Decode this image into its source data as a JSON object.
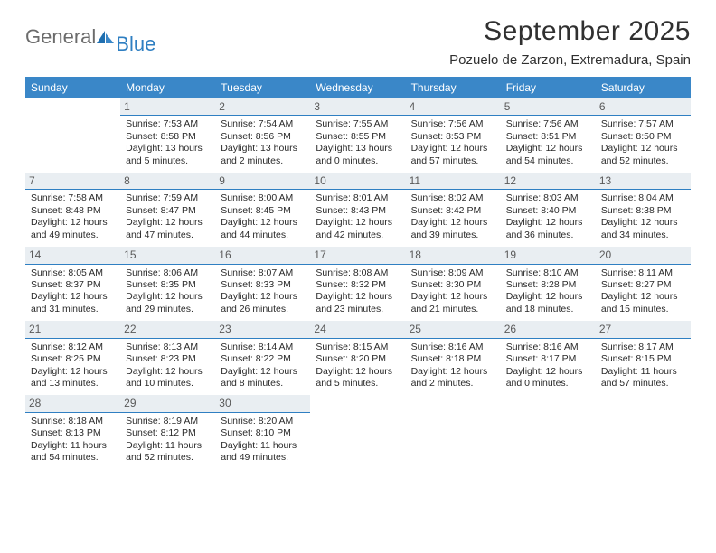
{
  "brand": {
    "prefix": "General",
    "suffix": "Blue"
  },
  "title": "September 2025",
  "location": "Pozuelo de Zarzon, Extremadura, Spain",
  "colors": {
    "header_bg": "#3a87c8",
    "header_text": "#ffffff",
    "daynum_bg": "#e9eef2",
    "daynum_border": "#2f7fc2",
    "body_text": "#2a2a2a",
    "title_text": "#303030",
    "logo_gray": "#6b6b6b",
    "logo_blue": "#2f7fc2",
    "page_bg": "#ffffff"
  },
  "weekdays": [
    "Sunday",
    "Monday",
    "Tuesday",
    "Wednesday",
    "Thursday",
    "Friday",
    "Saturday"
  ],
  "start_offset": 1,
  "days": [
    {
      "n": 1,
      "sunrise": "7:53 AM",
      "sunset": "8:58 PM",
      "daylight": "13 hours and 5 minutes."
    },
    {
      "n": 2,
      "sunrise": "7:54 AM",
      "sunset": "8:56 PM",
      "daylight": "13 hours and 2 minutes."
    },
    {
      "n": 3,
      "sunrise": "7:55 AM",
      "sunset": "8:55 PM",
      "daylight": "13 hours and 0 minutes."
    },
    {
      "n": 4,
      "sunrise": "7:56 AM",
      "sunset": "8:53 PM",
      "daylight": "12 hours and 57 minutes."
    },
    {
      "n": 5,
      "sunrise": "7:56 AM",
      "sunset": "8:51 PM",
      "daylight": "12 hours and 54 minutes."
    },
    {
      "n": 6,
      "sunrise": "7:57 AM",
      "sunset": "8:50 PM",
      "daylight": "12 hours and 52 minutes."
    },
    {
      "n": 7,
      "sunrise": "7:58 AM",
      "sunset": "8:48 PM",
      "daylight": "12 hours and 49 minutes."
    },
    {
      "n": 8,
      "sunrise": "7:59 AM",
      "sunset": "8:47 PM",
      "daylight": "12 hours and 47 minutes."
    },
    {
      "n": 9,
      "sunrise": "8:00 AM",
      "sunset": "8:45 PM",
      "daylight": "12 hours and 44 minutes."
    },
    {
      "n": 10,
      "sunrise": "8:01 AM",
      "sunset": "8:43 PM",
      "daylight": "12 hours and 42 minutes."
    },
    {
      "n": 11,
      "sunrise": "8:02 AM",
      "sunset": "8:42 PM",
      "daylight": "12 hours and 39 minutes."
    },
    {
      "n": 12,
      "sunrise": "8:03 AM",
      "sunset": "8:40 PM",
      "daylight": "12 hours and 36 minutes."
    },
    {
      "n": 13,
      "sunrise": "8:04 AM",
      "sunset": "8:38 PM",
      "daylight": "12 hours and 34 minutes."
    },
    {
      "n": 14,
      "sunrise": "8:05 AM",
      "sunset": "8:37 PM",
      "daylight": "12 hours and 31 minutes."
    },
    {
      "n": 15,
      "sunrise": "8:06 AM",
      "sunset": "8:35 PM",
      "daylight": "12 hours and 29 minutes."
    },
    {
      "n": 16,
      "sunrise": "8:07 AM",
      "sunset": "8:33 PM",
      "daylight": "12 hours and 26 minutes."
    },
    {
      "n": 17,
      "sunrise": "8:08 AM",
      "sunset": "8:32 PM",
      "daylight": "12 hours and 23 minutes."
    },
    {
      "n": 18,
      "sunrise": "8:09 AM",
      "sunset": "8:30 PM",
      "daylight": "12 hours and 21 minutes."
    },
    {
      "n": 19,
      "sunrise": "8:10 AM",
      "sunset": "8:28 PM",
      "daylight": "12 hours and 18 minutes."
    },
    {
      "n": 20,
      "sunrise": "8:11 AM",
      "sunset": "8:27 PM",
      "daylight": "12 hours and 15 minutes."
    },
    {
      "n": 21,
      "sunrise": "8:12 AM",
      "sunset": "8:25 PM",
      "daylight": "12 hours and 13 minutes."
    },
    {
      "n": 22,
      "sunrise": "8:13 AM",
      "sunset": "8:23 PM",
      "daylight": "12 hours and 10 minutes."
    },
    {
      "n": 23,
      "sunrise": "8:14 AM",
      "sunset": "8:22 PM",
      "daylight": "12 hours and 8 minutes."
    },
    {
      "n": 24,
      "sunrise": "8:15 AM",
      "sunset": "8:20 PM",
      "daylight": "12 hours and 5 minutes."
    },
    {
      "n": 25,
      "sunrise": "8:16 AM",
      "sunset": "8:18 PM",
      "daylight": "12 hours and 2 minutes."
    },
    {
      "n": 26,
      "sunrise": "8:16 AM",
      "sunset": "8:17 PM",
      "daylight": "12 hours and 0 minutes."
    },
    {
      "n": 27,
      "sunrise": "8:17 AM",
      "sunset": "8:15 PM",
      "daylight": "11 hours and 57 minutes."
    },
    {
      "n": 28,
      "sunrise": "8:18 AM",
      "sunset": "8:13 PM",
      "daylight": "11 hours and 54 minutes."
    },
    {
      "n": 29,
      "sunrise": "8:19 AM",
      "sunset": "8:12 PM",
      "daylight": "11 hours and 52 minutes."
    },
    {
      "n": 30,
      "sunrise": "8:20 AM",
      "sunset": "8:10 PM",
      "daylight": "11 hours and 49 minutes."
    }
  ],
  "labels": {
    "sunrise": "Sunrise:",
    "sunset": "Sunset:",
    "daylight": "Daylight:"
  }
}
